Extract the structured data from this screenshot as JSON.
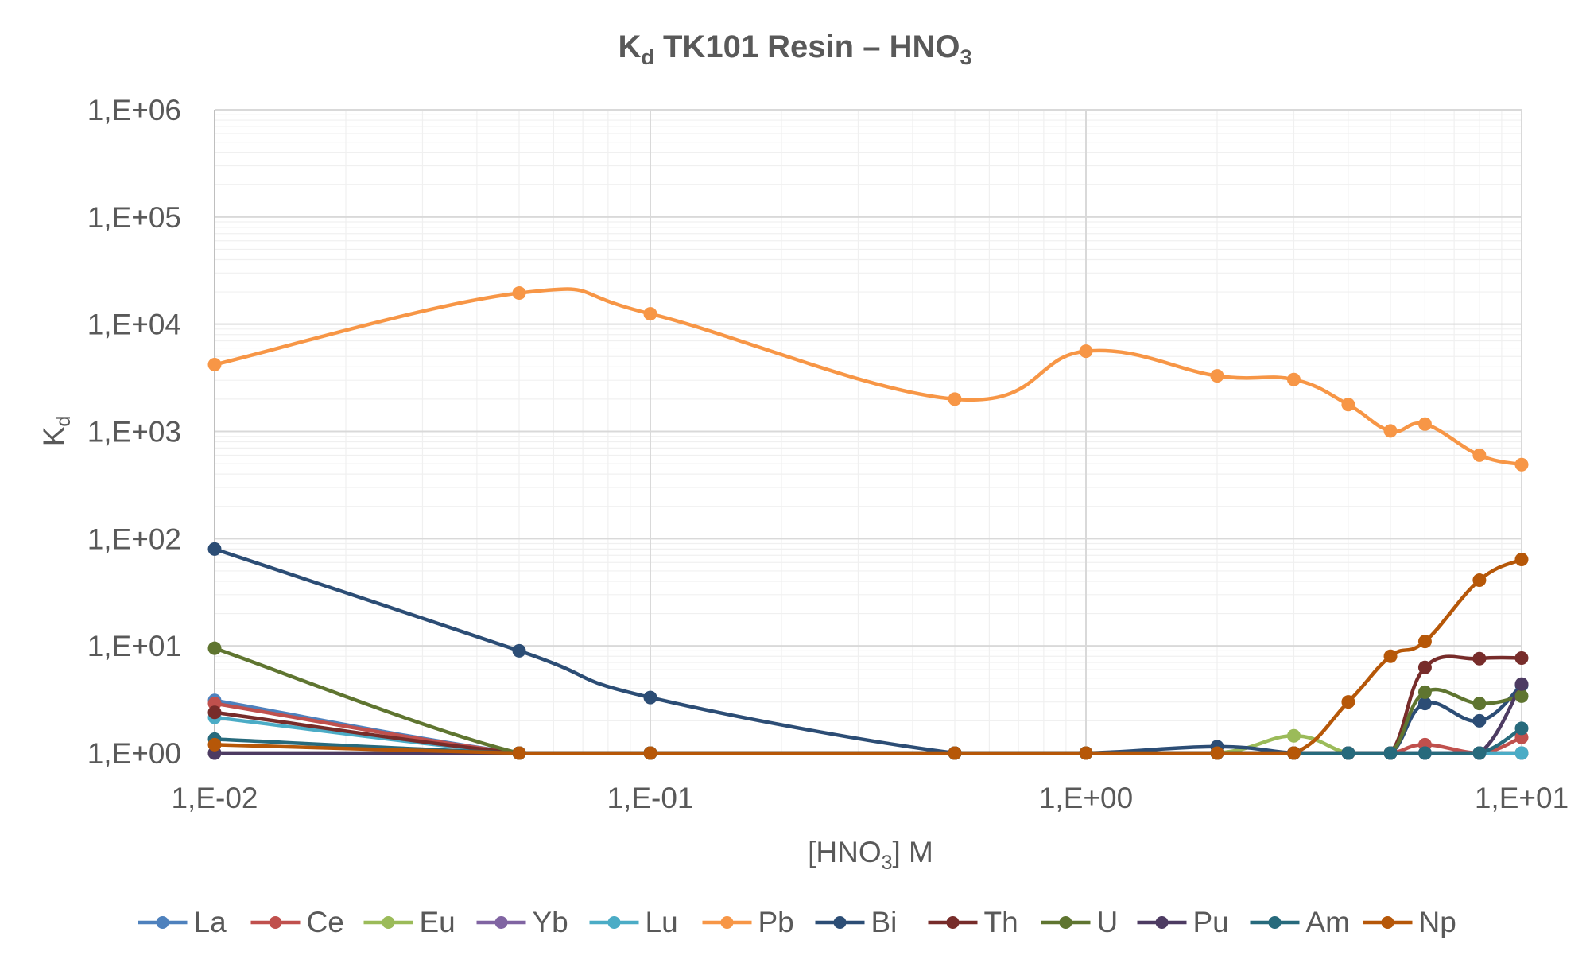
{
  "chart_data": {
    "type": "line",
    "title": "TK101 Resin – HNO",
    "title_prefix": "K",
    "title_prefix_sub": "d",
    "title_suffix_sub": "3",
    "xlabel_prefix": "[HNO",
    "xlabel_sub": "3",
    "xlabel_suffix": "] M",
    "ylabel": "K",
    "ylabel_sub": "d",
    "x_scale": "log",
    "y_scale": "log",
    "xlim": [
      0.01,
      10
    ],
    "ylim": [
      1,
      1000000
    ],
    "x_tick_labels": [
      "1,E-02",
      "1,E-01",
      "1,E+00",
      "1,E+01"
    ],
    "y_tick_labels": [
      "1,E+00",
      "1,E+01",
      "1,E+02",
      "1,E+03",
      "1,E+04",
      "1,E+05",
      "1,E+06"
    ],
    "grid": true,
    "legend_position": "bottom",
    "x": [
      0.01,
      0.05,
      0.1,
      0.5,
      1,
      2,
      3,
      4,
      5,
      6,
      8,
      10
    ],
    "series": [
      {
        "name": "La",
        "color": "#4e81bd",
        "values": [
          3.1,
          1,
          1,
          1,
          1,
          1,
          1,
          1,
          1,
          1,
          1,
          1
        ]
      },
      {
        "name": "Ce",
        "color": "#c0504d",
        "values": [
          2.9,
          1,
          1,
          1,
          1,
          1,
          1,
          1,
          1,
          1.2,
          1,
          1.4
        ]
      },
      {
        "name": "Eu",
        "color": "#9bbb59",
        "values": [
          1,
          1,
          1,
          1,
          1,
          1,
          1.45,
          1,
          1,
          1,
          1,
          1
        ]
      },
      {
        "name": "Yb",
        "color": "#8064a2",
        "values": [
          1,
          1,
          1,
          1,
          1,
          1,
          1,
          1,
          1,
          1,
          1,
          1
        ]
      },
      {
        "name": "Lu",
        "color": "#4bacc6",
        "values": [
          2.15,
          1,
          1,
          1,
          1,
          1,
          1,
          1,
          1,
          1,
          1,
          1
        ]
      },
      {
        "name": "Pb",
        "color": "#f79646",
        "values": [
          4200,
          19500,
          12500,
          2000,
          5600,
          3300,
          3050,
          1780,
          1010,
          1170,
          600,
          490
        ]
      },
      {
        "name": "Bi",
        "color": "#2c4d75",
        "values": [
          80,
          9,
          3.3,
          1,
          1,
          1.15,
          1,
          1,
          1,
          2.9,
          2,
          4.3
        ]
      },
      {
        "name": "Th",
        "color": "#772c2a",
        "values": [
          2.4,
          1,
          1,
          1,
          1,
          1,
          1,
          1,
          1,
          6.3,
          7.6,
          7.7
        ]
      },
      {
        "name": "U",
        "color": "#5f7530",
        "values": [
          9.5,
          1,
          1,
          1,
          1,
          1,
          1,
          1,
          1,
          3.7,
          2.9,
          3.4
        ]
      },
      {
        "name": "Pu",
        "color": "#4d3b62",
        "values": [
          1,
          1,
          1,
          1,
          1,
          1,
          1,
          1,
          1,
          1,
          1,
          4.4
        ]
      },
      {
        "name": "Am",
        "color": "#276a7c",
        "values": [
          1.35,
          1,
          1,
          1,
          1,
          1,
          1,
          1,
          1,
          1,
          1,
          1.7
        ]
      },
      {
        "name": "Np",
        "color": "#b65708",
        "values": [
          1.2,
          1,
          1,
          1,
          1,
          1,
          1,
          3,
          8,
          11,
          41,
          64
        ]
      }
    ]
  }
}
